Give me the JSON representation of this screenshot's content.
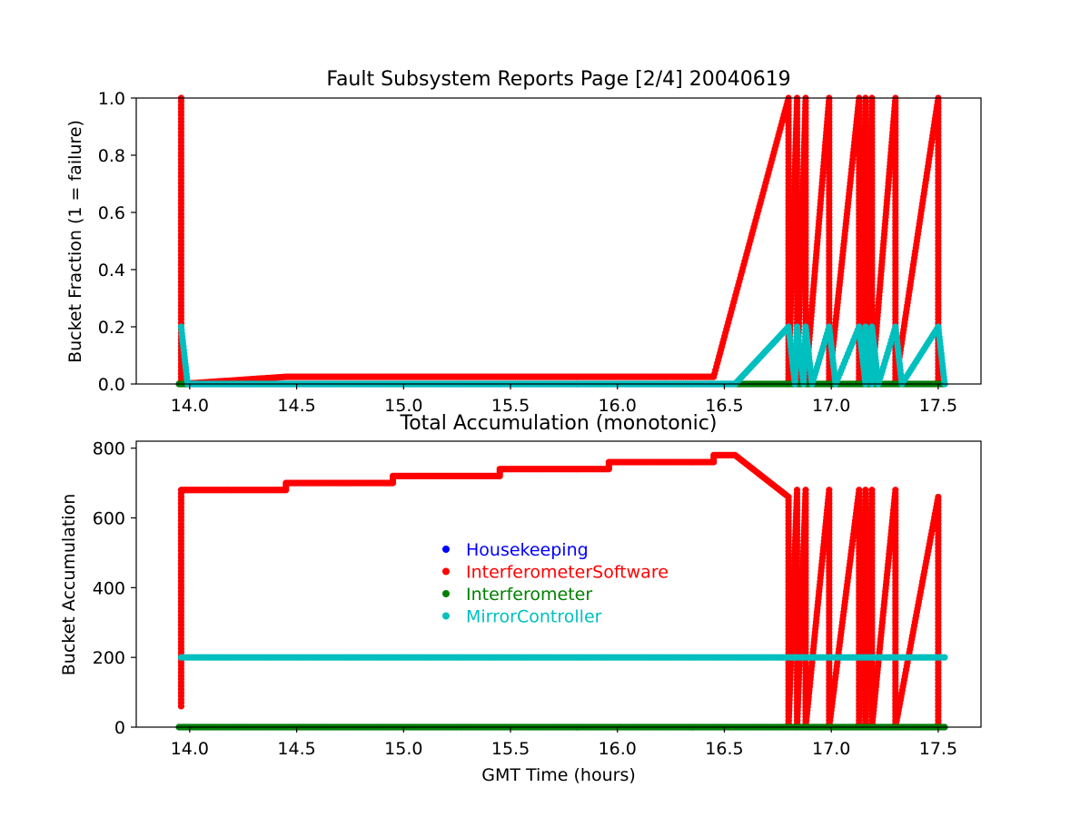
{
  "chart_data": [
    {
      "type": "scatter",
      "title": "Fault Subsystem Reports Page [2/4] 20040619",
      "xlabel": "",
      "ylabel": "Bucket Fraction (1 = failure)",
      "xlim": [
        13.75,
        17.7
      ],
      "ylim": [
        0,
        1
      ],
      "xticks": [
        "14.0",
        "14.5",
        "15.0",
        "15.5",
        "16.0",
        "16.5",
        "17.0",
        "17.5"
      ],
      "yticks": [
        "0.0",
        "0.2",
        "0.4",
        "0.6",
        "0.8",
        "1.0"
      ],
      "grid": false,
      "series": [
        {
          "name": "Housekeeping",
          "color": "#0000ff",
          "points": [
            [
              13.95,
              0
            ],
            [
              17.53,
              0
            ]
          ]
        },
        {
          "name": "InterferometerSoftware",
          "color": "#ff0000",
          "points": [
            [
              13.96,
              1.0
            ],
            [
              13.96,
              0.0
            ],
            [
              14.45,
              0.025
            ],
            [
              14.95,
              0.025
            ],
            [
              15.45,
              0.025
            ],
            [
              15.96,
              0.025
            ],
            [
              16.45,
              0.025
            ],
            [
              16.8,
              1.0
            ],
            [
              16.8,
              0.0
            ],
            [
              16.84,
              1.0
            ],
            [
              16.84,
              0.0
            ],
            [
              16.88,
              1.0
            ],
            [
              16.88,
              0.0
            ],
            [
              16.99,
              1.0
            ],
            [
              16.99,
              0.0
            ],
            [
              17.13,
              1.0
            ],
            [
              17.13,
              0.0
            ],
            [
              17.16,
              1.0
            ],
            [
              17.16,
              0.0
            ],
            [
              17.19,
              1.0
            ],
            [
              17.19,
              0.0
            ],
            [
              17.3,
              1.0
            ],
            [
              17.3,
              0.0
            ],
            [
              17.5,
              1.0
            ],
            [
              17.5,
              0.0
            ]
          ]
        },
        {
          "name": "Interferometer",
          "color": "#008000",
          "points": [
            [
              13.95,
              0
            ],
            [
              16.55,
              0
            ],
            [
              16.8,
              0
            ],
            [
              17.53,
              0
            ]
          ]
        },
        {
          "name": "MirrorController",
          "color": "#00bfbf",
          "points": [
            [
              13.96,
              0.2
            ],
            [
              13.99,
              0.0
            ],
            [
              16.55,
              0.0
            ],
            [
              16.8,
              0.2
            ],
            [
              16.83,
              0.0
            ],
            [
              16.84,
              0.2
            ],
            [
              16.87,
              0.0
            ],
            [
              16.88,
              0.2
            ],
            [
              16.91,
              0.0
            ],
            [
              16.99,
              0.2
            ],
            [
              17.02,
              0.0
            ],
            [
              17.13,
              0.2
            ],
            [
              17.16,
              0.0
            ],
            [
              17.16,
              0.2
            ],
            [
              17.19,
              0.0
            ],
            [
              17.19,
              0.2
            ],
            [
              17.22,
              0.0
            ],
            [
              17.3,
              0.2
            ],
            [
              17.33,
              0.0
            ],
            [
              17.5,
              0.2
            ],
            [
              17.53,
              0.0
            ]
          ]
        }
      ]
    },
    {
      "type": "scatter",
      "title": "Total Accumulation (monotonic)",
      "xlabel": "GMT Time (hours)",
      "ylabel": "Bucket Accumulation",
      "xlim": [
        13.75,
        17.7
      ],
      "ylim": [
        0,
        820
      ],
      "xticks": [
        "14.0",
        "14.5",
        "15.0",
        "15.5",
        "16.0",
        "16.5",
        "17.0",
        "17.5"
      ],
      "yticks": [
        "0",
        "200",
        "400",
        "600",
        "800"
      ],
      "grid": false,
      "legend": "center",
      "series": [
        {
          "name": "Housekeeping",
          "color": "#0000ff",
          "points": [
            [
              13.95,
              0
            ],
            [
              16.55,
              0
            ],
            [
              16.8,
              0
            ],
            [
              17.53,
              0
            ]
          ]
        },
        {
          "name": "InterferometerSoftware",
          "color": "#ff0000",
          "points": [
            [
              13.96,
              60
            ],
            [
              13.96,
              680
            ],
            [
              14.45,
              680
            ],
            [
              14.45,
              700
            ],
            [
              14.95,
              700
            ],
            [
              14.95,
              720
            ],
            [
              15.45,
              720
            ],
            [
              15.45,
              740
            ],
            [
              15.96,
              740
            ],
            [
              15.96,
              760
            ],
            [
              16.45,
              760
            ],
            [
              16.45,
              780
            ],
            [
              16.55,
              780
            ],
            [
              16.8,
              660
            ],
            [
              16.8,
              0
            ],
            [
              16.84,
              680
            ],
            [
              16.84,
              0
            ],
            [
              16.88,
              680
            ],
            [
              16.88,
              0
            ],
            [
              16.99,
              680
            ],
            [
              16.99,
              0
            ],
            [
              17.13,
              680
            ],
            [
              17.13,
              0
            ],
            [
              17.16,
              680
            ],
            [
              17.16,
              0
            ],
            [
              17.19,
              680
            ],
            [
              17.19,
              0
            ],
            [
              17.3,
              680
            ],
            [
              17.3,
              0
            ],
            [
              17.5,
              660
            ],
            [
              17.5,
              0
            ]
          ]
        },
        {
          "name": "Interferometer",
          "color": "#008000",
          "points": [
            [
              13.95,
              0
            ],
            [
              16.55,
              0
            ],
            [
              16.8,
              0
            ],
            [
              17.53,
              0
            ]
          ]
        },
        {
          "name": "MirrorController",
          "color": "#00bfbf",
          "points": [
            [
              13.96,
              200
            ],
            [
              16.55,
              200
            ],
            [
              16.8,
              200
            ],
            [
              16.92,
              200
            ],
            [
              16.99,
              200
            ],
            [
              17.08,
              200
            ],
            [
              17.13,
              200
            ],
            [
              17.53,
              200
            ]
          ]
        }
      ]
    }
  ]
}
